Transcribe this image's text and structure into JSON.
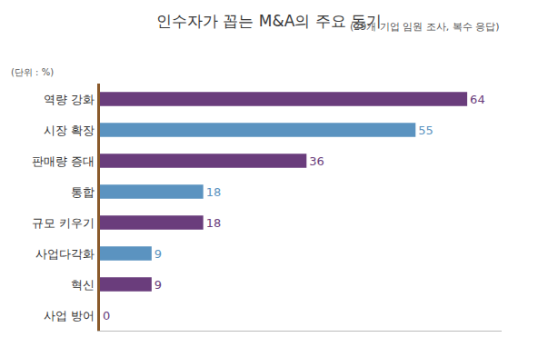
{
  "chart_data": {
    "type": "bar",
    "orientation": "horizontal",
    "title": "인수자가 꼽는 M&A의 주요 동기",
    "subtitle": "(29개 기업 임원 조사, 복수 응답)",
    "unit_label": "(단위 : %)",
    "categories": [
      "역량 강화",
      "시장 확장",
      "판매량 증대",
      "통합",
      "규모 키우기",
      "사업다각화",
      "혁신",
      "사업 방어"
    ],
    "values": [
      64,
      55,
      36,
      18,
      18,
      9,
      9,
      0
    ],
    "colors": [
      "#6a3d7c",
      "#5b93c0",
      "#6a3d7c",
      "#5b93c0",
      "#6a3d7c",
      "#5b93c0",
      "#6a3d7c",
      "#6a3d7c"
    ],
    "xlim": [
      0,
      70
    ],
    "tick_labels": "y",
    "data_labels": true,
    "grid": false
  }
}
